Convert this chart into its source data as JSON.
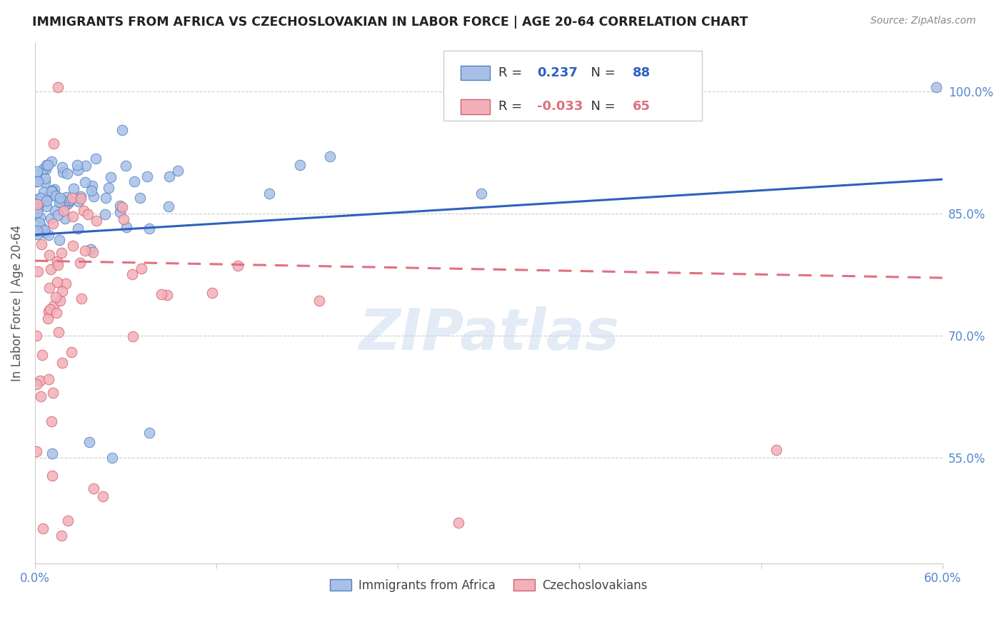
{
  "title": "IMMIGRANTS FROM AFRICA VS CZECHOSLOVAKIAN IN LABOR FORCE | AGE 20-64 CORRELATION CHART",
  "source": "Source: ZipAtlas.com",
  "ylabel": "In Labor Force | Age 20-64",
  "watermark": "ZIPatlas",
  "blue_color": "#a8c0e8",
  "blue_edge_color": "#5080c0",
  "pink_color": "#f4b0b8",
  "pink_edge_color": "#d06070",
  "blue_line_color": "#3060c0",
  "pink_line_color": "#e07080",
  "legend_R_blue": "0.237",
  "legend_N_blue": "88",
  "legend_R_pink": "-0.033",
  "legend_N_pink": "65",
  "xmin": 0.0,
  "xmax": 0.6,
  "ymin": 0.42,
  "ymax": 1.06,
  "ytick_vals": [
    0.55,
    0.7,
    0.85,
    1.0
  ],
  "ytick_labels": [
    "55.0%",
    "70.0%",
    "85.0%",
    "100.0%"
  ],
  "blue_trend_x0": 0.0,
  "blue_trend_x1": 0.6,
  "blue_trend_y0": 0.824,
  "blue_trend_y1": 0.892,
  "pink_trend_x0": 0.0,
  "pink_trend_x1": 0.6,
  "pink_trend_y0": 0.792,
  "pink_trend_y1": 0.771,
  "grid_color": "#cccccc",
  "background_color": "#ffffff",
  "tick_label_color": "#5588cc",
  "spine_color": "#cccccc"
}
